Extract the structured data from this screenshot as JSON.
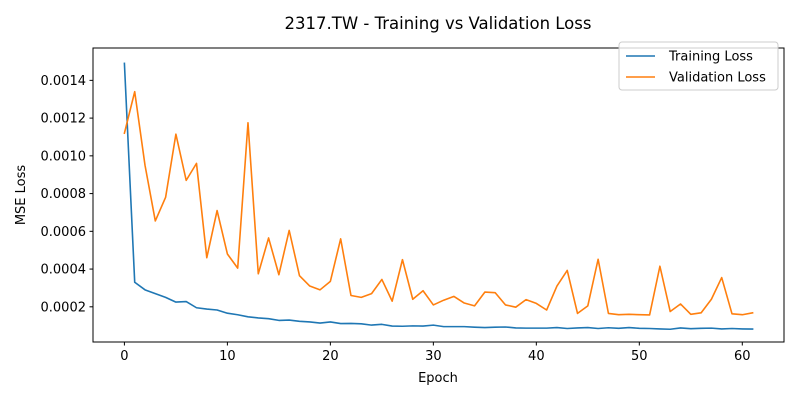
{
  "chart_data": {
    "type": "line",
    "title": "2317.TW - Training vs Validation Loss",
    "xlabel": "Epoch",
    "ylabel": "MSE Loss",
    "xlim": [
      -3.05,
      64.05
    ],
    "ylim": [
      1.35e-05,
      0.0015715
    ],
    "xticks": [
      0,
      10,
      20,
      30,
      40,
      50,
      60
    ],
    "xtick_labels": [
      "0",
      "10",
      "20",
      "30",
      "40",
      "50",
      "60"
    ],
    "yticks": [
      0.0002,
      0.0004,
      0.0006,
      0.0008,
      0.001,
      0.0012,
      0.0014
    ],
    "ytick_labels": [
      "0.0002",
      "0.0004",
      "0.0006",
      "0.0008",
      "0.0010",
      "0.0012",
      "0.0014"
    ],
    "grid": false,
    "legend_position": "top-right",
    "x": [
      0,
      1,
      2,
      3,
      4,
      5,
      6,
      7,
      8,
      9,
      10,
      11,
      12,
      13,
      14,
      15,
      16,
      17,
      18,
      19,
      20,
      21,
      22,
      23,
      24,
      25,
      26,
      27,
      28,
      29,
      30,
      31,
      32,
      33,
      34,
      35,
      36,
      37,
      38,
      39,
      40,
      41,
      42,
      43,
      44,
      45,
      46,
      47,
      48,
      49,
      50,
      51,
      52,
      53,
      54,
      55,
      56,
      57,
      58,
      59,
      60,
      61
    ],
    "series": [
      {
        "name": "Training Loss",
        "color": "#1f77b4",
        "values": [
          0.00149,
          0.00033,
          0.00029,
          0.00027,
          0.00025,
          0.000225,
          0.000228,
          0.000195,
          0.000188,
          0.000183,
          0.000166,
          0.000158,
          0.000147,
          0.000141,
          0.000137,
          0.000128,
          0.00013,
          0.000123,
          0.00012,
          0.000114,
          0.00012,
          0.000111,
          0.000112,
          0.00011,
          0.000103,
          0.000107,
          9.8e-05,
          9.7e-05,
          9.9e-05,
          9.8e-05,
          0.000103,
          9.5e-05,
          9.5e-05,
          9.5e-05,
          9.2e-05,
          9e-05,
          9.2e-05,
          9.3e-05,
          8.8e-05,
          8.7e-05,
          8.7e-05,
          8.7e-05,
          9e-05,
          8.5e-05,
          8.8e-05,
          9e-05,
          8.5e-05,
          8.9e-05,
          8.6e-05,
          9e-05,
          8.6e-05,
          8.5e-05,
          8.3e-05,
          8.1e-05,
          8.8e-05,
          8.4e-05,
          8.6e-05,
          8.7e-05,
          8.3e-05,
          8.5e-05,
          8.3e-05,
          8.2e-05
        ]
      },
      {
        "name": "Validation Loss",
        "color": "#ff7f0e",
        "values": [
          0.00112,
          0.00134,
          0.00095,
          0.000655,
          0.00078,
          0.001115,
          0.00087,
          0.00096,
          0.00046,
          0.00071,
          0.00048,
          0.000405,
          0.001175,
          0.000375,
          0.000565,
          0.00037,
          0.000605,
          0.000365,
          0.00031,
          0.00029,
          0.000335,
          0.00056,
          0.00026,
          0.00025,
          0.00027,
          0.000345,
          0.00023,
          0.00045,
          0.00024,
          0.000285,
          0.00021,
          0.000235,
          0.000255,
          0.00022,
          0.000205,
          0.000278,
          0.000275,
          0.00021,
          0.000198,
          0.000238,
          0.000218,
          0.000183,
          0.00031,
          0.000393,
          0.000165,
          0.000205,
          0.000452,
          0.000165,
          0.000158,
          0.00016,
          0.000158,
          0.000157,
          0.000415,
          0.000175,
          0.000215,
          0.00016,
          0.000168,
          0.00024,
          0.000355,
          0.000163,
          0.000158,
          0.000168
        ]
      }
    ]
  }
}
